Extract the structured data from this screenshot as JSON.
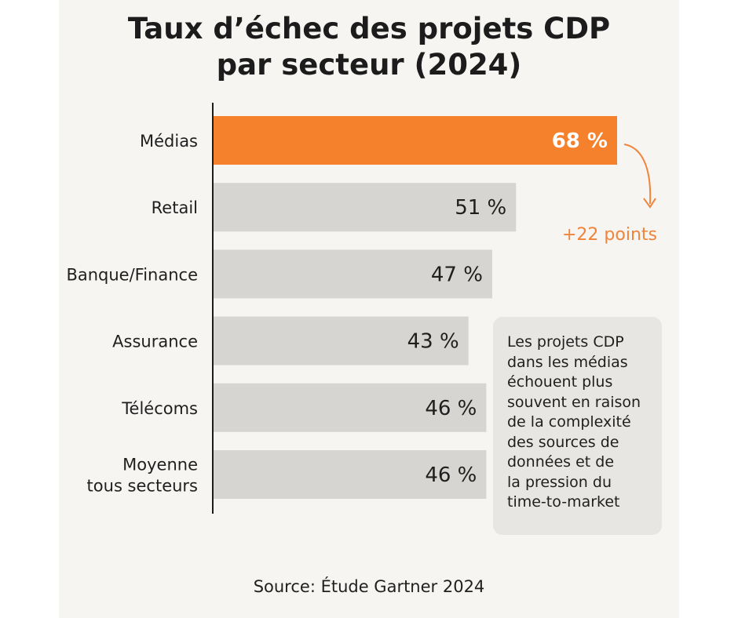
{
  "title": {
    "line1": "Taux d’échec des projets CDP",
    "line2": "par secteur (2024)"
  },
  "colors": {
    "highlight": "#f5812d",
    "bar": "#d6d5d1",
    "accent_text": "#f0843a"
  },
  "chart_data": {
    "type": "bar",
    "orientation": "horizontal",
    "title": "Taux d’échec des projets CDP par secteur (2024)",
    "xlabel": "",
    "ylabel": "",
    "xlim": [
      0,
      100
    ],
    "unit": "%",
    "grid": false,
    "categories": [
      {
        "lines": [
          "Médias"
        ]
      },
      {
        "lines": [
          "Retail"
        ]
      },
      {
        "lines": [
          "Banque/Finance"
        ]
      },
      {
        "lines": [
          "Assurance"
        ]
      },
      {
        "lines": [
          "Télécoms"
        ]
      },
      {
        "lines": [
          "Moyenne",
          "tous secteurs"
        ]
      }
    ],
    "values": [
      68,
      51,
      47,
      43,
      46,
      46
    ],
    "value_labels": [
      "68 %",
      "51 %",
      "47 %",
      "43 %",
      "46 %",
      "46 %"
    ],
    "highlight_index": 0
  },
  "annotation": {
    "delta": "+22 points",
    "note_lines": [
      "Les projets CDP",
      "dans les médias",
      "échouent plus",
      "souvent en raison",
      "de la complexité",
      "des sources de",
      "données et de",
      "la pression du",
      "time-to-market"
    ]
  },
  "source": "Source: Étude Gartner 2024"
}
